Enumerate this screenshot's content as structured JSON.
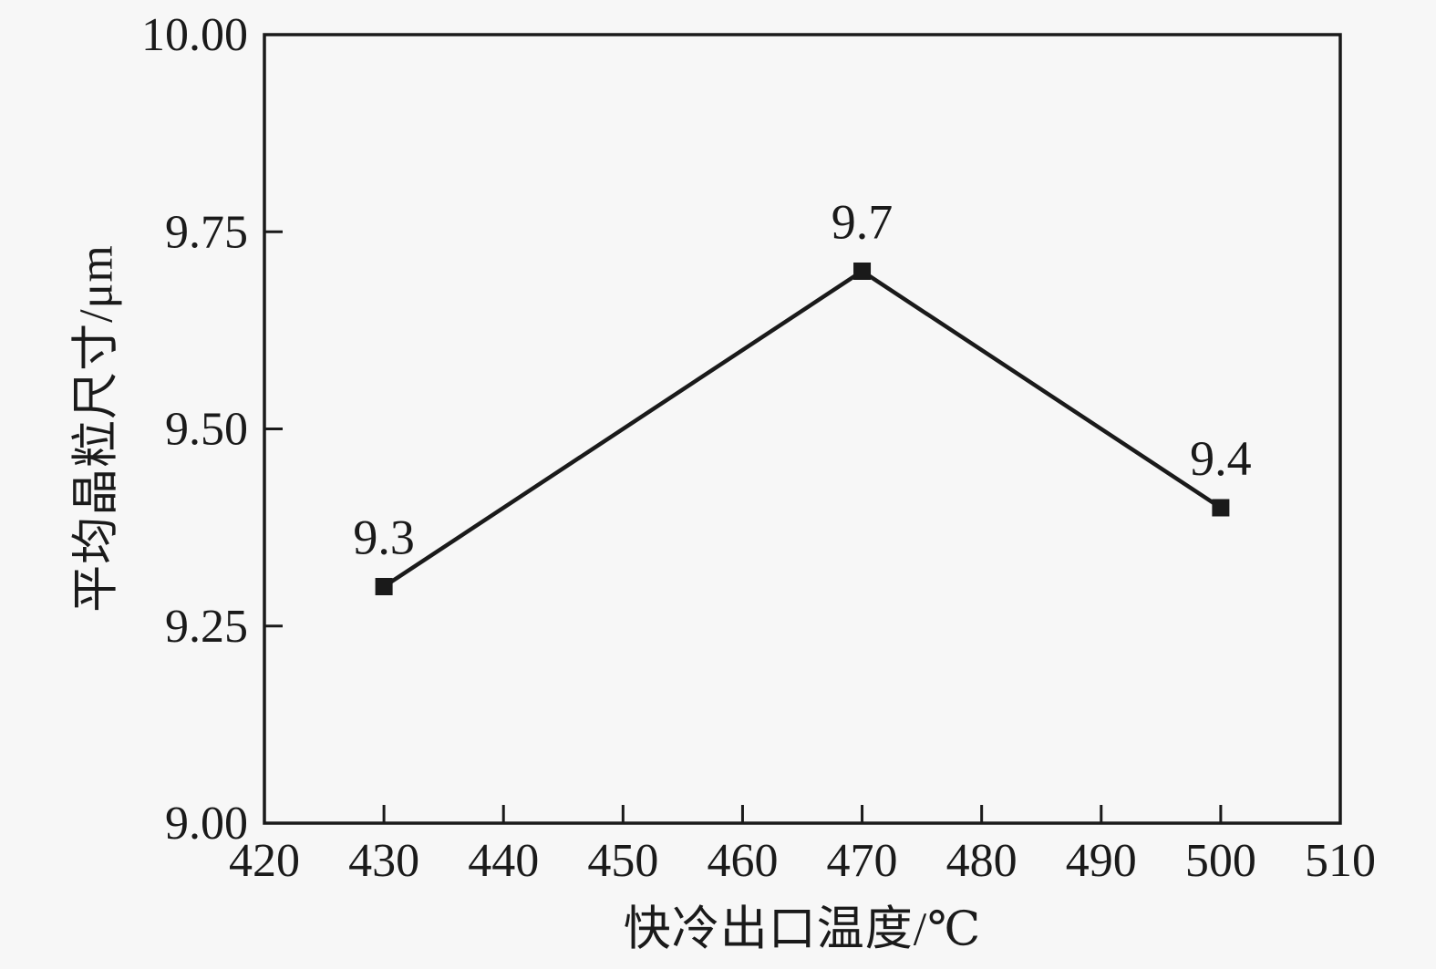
{
  "chart_data": {
    "type": "line",
    "title": "",
    "xlabel": "快冷出口温度/℃",
    "ylabel": "平均晶粒尺寸/μm",
    "x": [
      430,
      470,
      500
    ],
    "y": [
      9.3,
      9.7,
      9.4
    ],
    "point_labels": [
      "9.3",
      "9.7",
      "9.4"
    ],
    "xlim": [
      420,
      510
    ],
    "ylim": [
      9.0,
      10.0
    ],
    "x_ticks": [
      420,
      430,
      440,
      450,
      460,
      470,
      480,
      490,
      500,
      510
    ],
    "x_tick_labels": [
      "420",
      "430",
      "440",
      "450",
      "460",
      "470",
      "480",
      "490",
      "500",
      "510"
    ],
    "y_ticks": [
      9.0,
      9.25,
      9.5,
      9.75,
      10.0
    ],
    "y_tick_labels": [
      "9.00",
      "9.25",
      "9.50",
      "9.75",
      "10.00"
    ],
    "grid": false,
    "legend": "none",
    "marker": "square",
    "line_color": "#1a1a1a",
    "marker_color": "#1a1a1a",
    "text_color": "#1a1a1a",
    "background_color": "#f7f7f7"
  }
}
